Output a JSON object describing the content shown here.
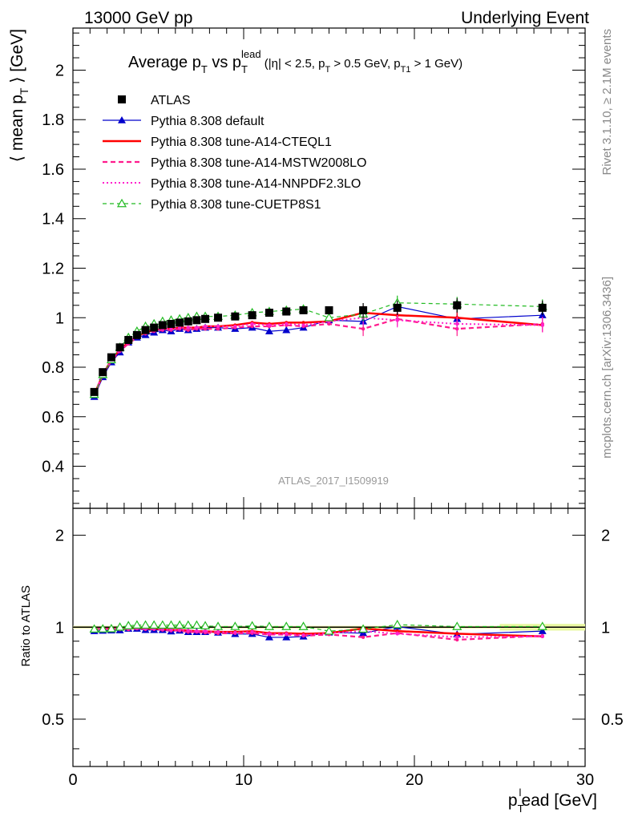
{
  "header": {
    "left": "13000 GeV pp",
    "right": "Underlying Event",
    "side_top": "Rivet 3.1.10, ≥ 2.1M events",
    "side_bottom": "mcplots.cern.ch [arXiv:1306.3436]",
    "analysis_id": "ATLAS_2017_I1509919"
  },
  "chart_data": {
    "type": "scatter",
    "title": {
      "t1": "Average p",
      "t1_sub": "T",
      "t2": " vs p",
      "t2_sub": "T",
      "t2_sup": "lead",
      "t3": " (|η| < 2.5, p",
      "t3_sub": "T",
      "t4": " > 0.5 GeV, p",
      "t4_sub": "T1",
      "t5": " > 1 GeV)"
    },
    "ylabel": {
      "left": "⟨ mean p",
      "sub": "T",
      "right": " ⟩ [GeV]"
    },
    "xlabel": {
      "p": "p",
      "sub": "T",
      "sup": "l",
      "rest": "ead [GeV]"
    },
    "ratio_ylabel": "Ratio to ATLAS",
    "xlim": [
      0,
      30
    ],
    "ylim": [
      0.23,
      2.17
    ],
    "ratio_ylim": [
      0.35,
      2.45
    ],
    "x_ticks": [
      "0",
      "10",
      "20",
      "30"
    ],
    "y_ticks": [
      "0.4",
      "0.6",
      "0.8",
      "1",
      "1.2",
      "1.4",
      "1.6",
      "1.8",
      "2"
    ],
    "ratio_ticks": [
      "0.5",
      "1",
      "2"
    ],
    "legend_position": "top-left",
    "x": [
      1.25,
      1.75,
      2.25,
      2.75,
      3.25,
      3.75,
      4.25,
      4.75,
      5.25,
      5.75,
      6.25,
      6.75,
      7.25,
      7.75,
      8.5,
      9.5,
      10.5,
      11.5,
      12.5,
      13.5,
      15,
      17,
      19,
      22.5,
      27.5
    ],
    "series": [
      {
        "name": "ATLAS",
        "color": "#000000",
        "style": "data",
        "values": [
          0.7,
          0.78,
          0.84,
          0.88,
          0.91,
          0.93,
          0.95,
          0.96,
          0.97,
          0.975,
          0.98,
          0.985,
          0.99,
          0.995,
          1.0,
          1.005,
          1.01,
          1.02,
          1.025,
          1.03,
          1.03,
          1.03,
          1.04,
          1.05,
          1.04
        ]
      },
      {
        "name": "Pythia 8.308 default",
        "color": "#0000cc",
        "style": "solid-tri",
        "values": [
          0.68,
          0.76,
          0.82,
          0.86,
          0.9,
          0.92,
          0.93,
          0.94,
          0.95,
          0.945,
          0.955,
          0.95,
          0.955,
          0.96,
          0.96,
          0.955,
          0.96,
          0.945,
          0.95,
          0.96,
          0.99,
          0.985,
          1.045,
          0.995,
          1.01
        ]
      },
      {
        "name": "Pythia 8.308 tune-A14-CTEQL1",
        "color": "#ff0000",
        "style": "solid-thick",
        "values": [
          0.69,
          0.77,
          0.83,
          0.87,
          0.9,
          0.925,
          0.94,
          0.95,
          0.955,
          0.955,
          0.96,
          0.96,
          0.96,
          0.965,
          0.965,
          0.97,
          0.98,
          0.975,
          0.98,
          0.98,
          0.985,
          1.02,
          1.01,
          1.0,
          0.97
        ]
      },
      {
        "name": "Pythia 8.308 tune-A14-MSTW2008LO",
        "color": "#ff1b8d",
        "style": "dashed",
        "values": [
          0.69,
          0.77,
          0.825,
          0.865,
          0.895,
          0.92,
          0.935,
          0.945,
          0.95,
          0.95,
          0.955,
          0.95,
          0.955,
          0.955,
          0.955,
          0.96,
          0.965,
          0.965,
          0.97,
          0.965,
          0.975,
          0.955,
          0.995,
          0.955,
          0.975
        ]
      },
      {
        "name": "Pythia 8.308 tune-A14-NNPDF2.3LO",
        "color": "#ff22cc",
        "style": "dotted",
        "values": [
          0.69,
          0.77,
          0.83,
          0.87,
          0.9,
          0.925,
          0.94,
          0.95,
          0.955,
          0.955,
          0.96,
          0.96,
          0.96,
          0.965,
          0.965,
          0.965,
          0.975,
          0.97,
          0.975,
          0.97,
          0.985,
          1.0,
          0.99,
          0.975,
          0.97
        ]
      },
      {
        "name": "Pythia 8.308 tune-CUETP8S1",
        "color": "#22bb22",
        "style": "dashed-opentri",
        "values": [
          0.69,
          0.77,
          0.83,
          0.88,
          0.92,
          0.945,
          0.965,
          0.975,
          0.985,
          0.99,
          0.995,
          1.0,
          1.005,
          1.005,
          1.005,
          1.01,
          1.02,
          1.025,
          1.03,
          1.035,
          1.0,
          1.015,
          1.06,
          1.055,
          1.045
        ]
      }
    ]
  }
}
